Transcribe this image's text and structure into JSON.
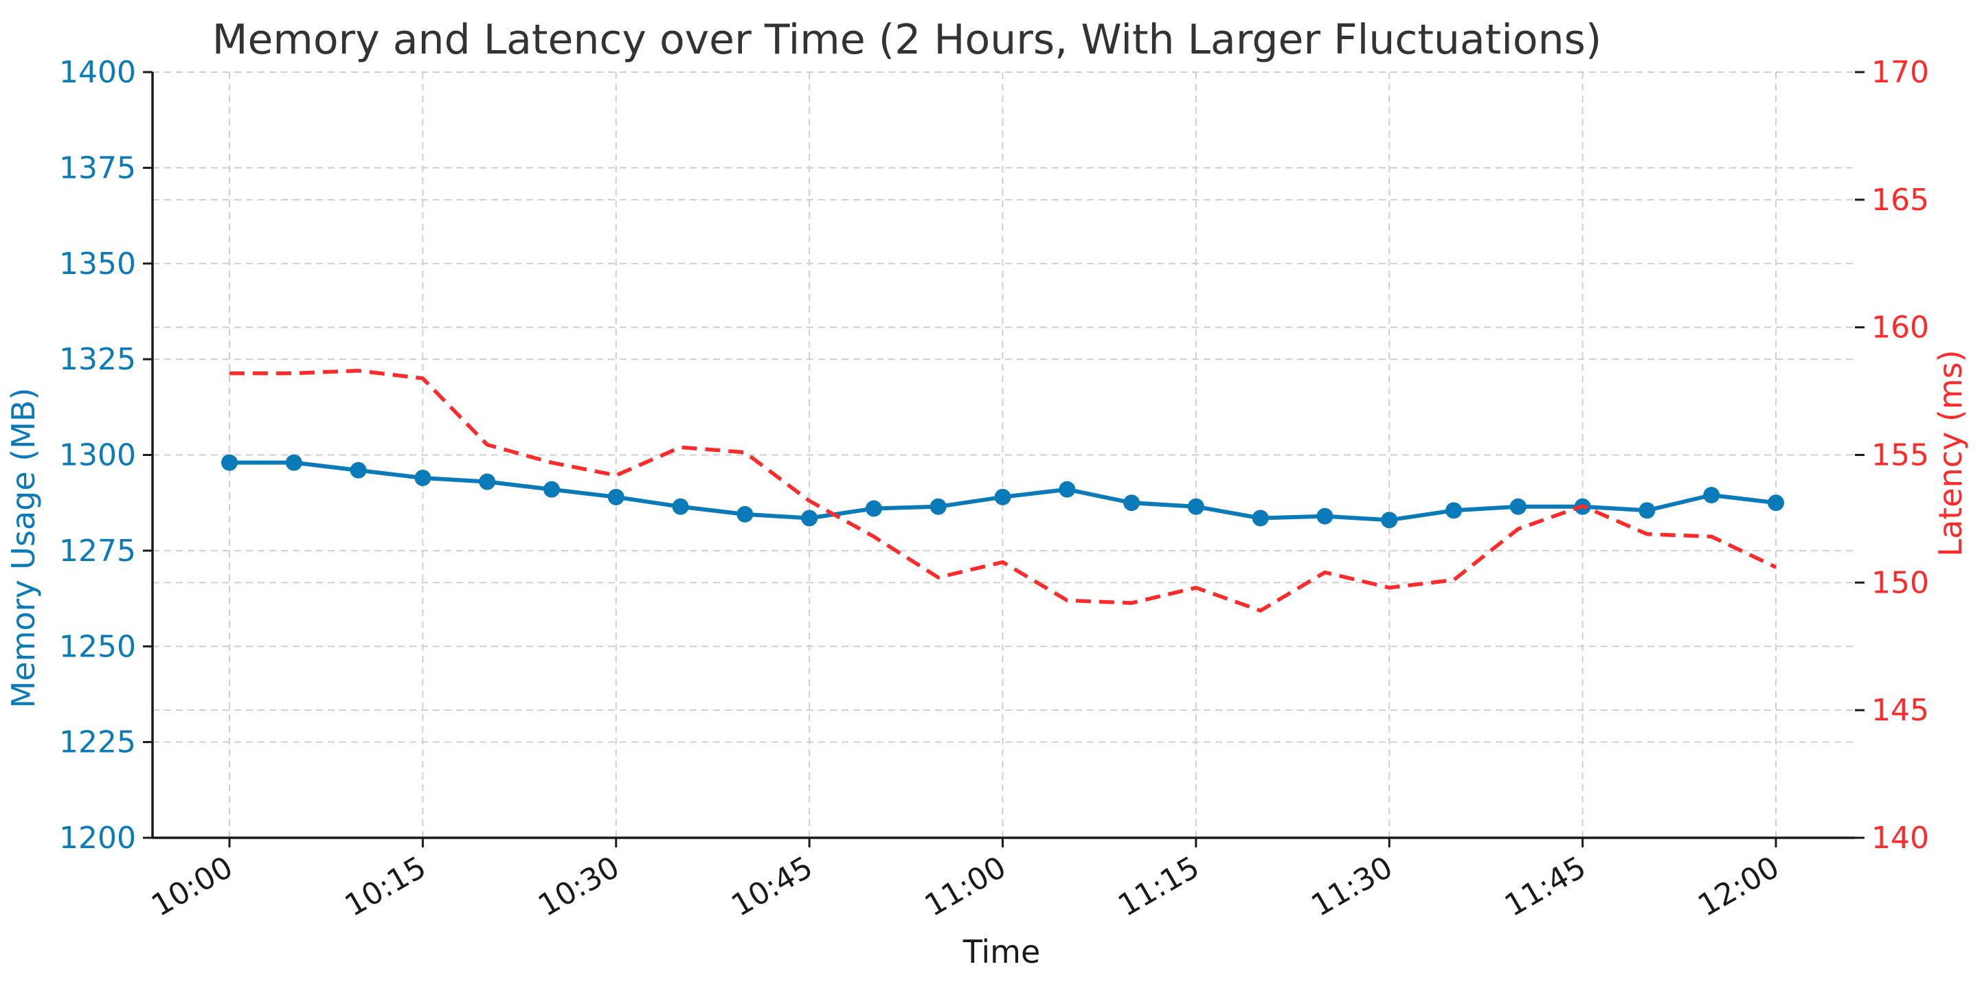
{
  "chart_data": {
    "type": "line",
    "title": "Memory and Latency over Time (2 Hours, With Larger Fluctuations)",
    "xlabel": "Time",
    "ylabel_left": "Memory Usage (MB)",
    "ylabel_right": "Latency (ms)",
    "x_ticks": [
      "10:00",
      "10:15",
      "10:30",
      "10:45",
      "11:00",
      "11:15",
      "11:30",
      "11:45",
      "12:00"
    ],
    "x_range_minutes": [
      0,
      120
    ],
    "ylim_left": [
      1200,
      1400
    ],
    "ylim_right": [
      140,
      170
    ],
    "yticks_left": [
      "1200",
      "1225",
      "1250",
      "1275",
      "1300",
      "1325",
      "1350",
      "1375",
      "1400"
    ],
    "yticks_right": [
      "140",
      "145",
      "150",
      "155",
      "160",
      "165",
      "170"
    ],
    "grid": true,
    "colors": {
      "memory": "#0a7ab8",
      "latency": "#ff2a2a",
      "left_axis_text": "#0a7ab8",
      "right_axis_text": "#ff2a2a"
    },
    "series": [
      {
        "axis": "left",
        "style": "solid-with-markers",
        "x_minutes": [
          0,
          5,
          10,
          15,
          20,
          25,
          30,
          35,
          40,
          45,
          50,
          55,
          60,
          65,
          70,
          75,
          80,
          85,
          90,
          95,
          100,
          105,
          110,
          115,
          120
        ],
        "values": [
          1298,
          1298,
          1296,
          1294,
          1293,
          1291,
          1289,
          1286.5,
          1284.5,
          1283.5,
          1286,
          1286.5,
          1289,
          1291,
          1287.5,
          1286.5,
          1283.5,
          1284,
          1283,
          1285.5,
          1286.5,
          1286.5,
          1285.5,
          1289.5,
          1287.5
        ]
      },
      {
        "axis": "right",
        "style": "dashed",
        "x_minutes": [
          0,
          5,
          10,
          15,
          20,
          25,
          30,
          35,
          40,
          45,
          50,
          55,
          60,
          65,
          70,
          75,
          80,
          85,
          90,
          95,
          100,
          105,
          110,
          115,
          120
        ],
        "values": [
          158.2,
          158.2,
          158.3,
          158.0,
          155.4,
          154.7,
          154.2,
          155.3,
          155.1,
          153.2,
          151.8,
          150.2,
          150.8,
          149.3,
          149.2,
          149.8,
          148.9,
          150.4,
          149.8,
          150.1,
          152.1,
          153.0,
          151.9,
          151.8,
          150.6
        ]
      }
    ]
  }
}
